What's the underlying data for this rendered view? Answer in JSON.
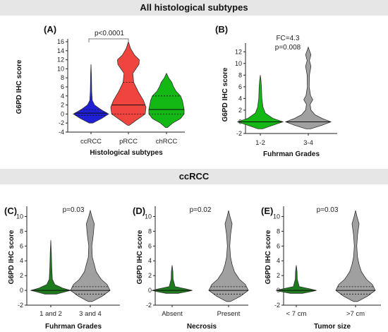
{
  "sections": {
    "top_title": "All histological subtypes",
    "bottom_title": "ccRCC"
  },
  "colors": {
    "blue": "#1f1fd6",
    "red": "#f0443f",
    "green": "#14b814",
    "dark_green": "#1d7a1d",
    "gray": "#a0a0a0",
    "annotation_bracket": "#777777"
  },
  "chart_data": [
    {
      "panel": "(A)",
      "type": "violin",
      "xlabel": "Histological subtypes",
      "ylabel": "G6PD IHC score",
      "ylim": [
        -4,
        16
      ],
      "yticks": [
        -4,
        -2,
        0,
        2,
        4,
        6,
        8,
        10,
        12,
        14,
        16
      ],
      "annotation": "p<0.0001",
      "categories": [
        "ccRCC",
        "pRCC",
        "chRCC"
      ],
      "series": [
        {
          "category": "ccRCC",
          "color": "blue",
          "min": -2,
          "max": 11,
          "median": 0.2,
          "q1": -0.3,
          "q3": 0.9,
          "profile": [
            [
              -2,
              0.1
            ],
            [
              -1,
              0.6
            ],
            [
              0,
              1.0
            ],
            [
              1,
              0.55
            ],
            [
              2,
              0.2
            ],
            [
              3,
              0.07
            ],
            [
              5,
              0.04
            ],
            [
              7,
              0.03
            ],
            [
              9,
              0.02
            ],
            [
              11,
              0
            ]
          ]
        },
        {
          "category": "pRCC",
          "color": "red",
          "min": -2.5,
          "max": 16,
          "median": 2,
          "q1": 0,
          "q3": 7,
          "profile": [
            [
              -2.5,
              0.05
            ],
            [
              -1.5,
              0.4
            ],
            [
              0,
              0.95
            ],
            [
              1.5,
              1.0
            ],
            [
              3,
              0.85
            ],
            [
              5,
              0.55
            ],
            [
              7,
              0.3
            ],
            [
              9,
              0.25
            ],
            [
              11,
              0.6
            ],
            [
              12,
              0.62
            ],
            [
              13,
              0.35
            ],
            [
              14.5,
              0.12
            ],
            [
              16,
              0
            ]
          ]
        },
        {
          "category": "chRCC",
          "color": "green",
          "min": -3,
          "max": 9,
          "median": 1,
          "q1": 0,
          "q3": 4,
          "profile": [
            [
              -3,
              0.05
            ],
            [
              -2,
              0.35
            ],
            [
              -1,
              0.8
            ],
            [
              0,
              1.0
            ],
            [
              1,
              1.0
            ],
            [
              2,
              0.95
            ],
            [
              3,
              0.9
            ],
            [
              4,
              0.8
            ],
            [
              5,
              0.55
            ],
            [
              6,
              0.4
            ],
            [
              7,
              0.3
            ],
            [
              8,
              0.12
            ],
            [
              9,
              0
            ]
          ]
        }
      ]
    },
    {
      "panel": "(B)",
      "type": "violin",
      "xlabel": "Fuhrman Grades",
      "ylabel": "G6PD IHC score",
      "ylim": [
        -2,
        13
      ],
      "yticks": [
        -2,
        0,
        2,
        4,
        6,
        8,
        10,
        12
      ],
      "annotation": "FC=4.3",
      "annotation2": "p=0.008",
      "categories": [
        "1-2",
        "3-4"
      ],
      "series": [
        {
          "category": "1-2",
          "color": "green",
          "min": -1.2,
          "max": 8,
          "median": 0,
          "q1": -0.3,
          "q3": 0.3,
          "profile": [
            [
              -1.2,
              0.1
            ],
            [
              -0.6,
              0.55
            ],
            [
              0,
              1.0
            ],
            [
              0.6,
              0.55
            ],
            [
              1.5,
              0.22
            ],
            [
              2.5,
              0.12
            ],
            [
              4,
              0.07
            ],
            [
              6,
              0.05
            ],
            [
              7,
              0.03
            ],
            [
              8,
              0
            ]
          ]
        },
        {
          "category": "3-4",
          "color": "gray",
          "min": -1.2,
          "max": 12.8,
          "median": 0,
          "q1": -0.3,
          "q3": 0.3,
          "profile": [
            [
              -1.2,
              0.1
            ],
            [
              -0.6,
              0.6
            ],
            [
              0,
              1.0
            ],
            [
              0.6,
              0.6
            ],
            [
              1.2,
              0.3
            ],
            [
              2,
              0.12
            ],
            [
              3,
              0.08
            ],
            [
              3.8,
              0.2
            ],
            [
              4.5,
              0.1
            ],
            [
              6,
              0.04
            ],
            [
              8,
              0.05
            ],
            [
              9.5,
              0.12
            ],
            [
              10.5,
              0.05
            ],
            [
              11.5,
              0.12
            ],
            [
              12.2,
              0.05
            ],
            [
              12.8,
              0
            ]
          ]
        }
      ]
    },
    {
      "panel": "(C)",
      "type": "violin",
      "xlabel": "Fuhrman Grades",
      "ylabel": "G6PD IHC score",
      "ylim": [
        -2,
        11
      ],
      "yticks": [
        -2,
        0,
        2,
        4,
        6,
        8,
        10
      ],
      "annotation": "p=0.03",
      "categories": [
        "1 and 2",
        "3 and 4"
      ],
      "series": [
        {
          "category": "1 and 2",
          "color": "dark_green",
          "min": -0.5,
          "max": 6.8,
          "median": 0,
          "q1": -0.2,
          "q3": 0.2,
          "profile": [
            [
              -0.5,
              0.3
            ],
            [
              -0.2,
              0.7
            ],
            [
              0,
              1.0
            ],
            [
              0.3,
              0.6
            ],
            [
              0.8,
              0.2
            ],
            [
              1.5,
              0.08
            ],
            [
              3,
              0.05
            ],
            [
              5,
              0.03
            ],
            [
              6.8,
              0
            ]
          ]
        },
        {
          "category": "3 and 4",
          "color": "gray",
          "min": -1.5,
          "max": 10.8,
          "median": 0,
          "q1": -0.5,
          "q3": 0.5,
          "profile": [
            [
              -1.5,
              0.1
            ],
            [
              -0.8,
              0.6
            ],
            [
              0,
              1.0
            ],
            [
              0.8,
              0.85
            ],
            [
              1.5,
              0.55
            ],
            [
              2.5,
              0.3
            ],
            [
              3.5,
              0.2
            ],
            [
              4.5,
              0.1
            ],
            [
              6,
              0.08
            ],
            [
              7.5,
              0.15
            ],
            [
              9,
              0.2
            ],
            [
              10,
              0.08
            ],
            [
              10.8,
              0
            ]
          ]
        }
      ]
    },
    {
      "panel": "(D)",
      "type": "violin",
      "xlabel": "Necrosis",
      "ylabel": "G6PD IHC score",
      "ylim": [
        -2,
        11
      ],
      "yticks": [
        -2,
        0,
        2,
        4,
        6,
        8,
        10
      ],
      "annotation": "p=0.02",
      "categories": [
        "Absent",
        "Present"
      ],
      "series": [
        {
          "category": "Absent",
          "color": "dark_green",
          "min": -0.4,
          "max": 3.4,
          "median": 0,
          "q1": -0.15,
          "q3": 0.15,
          "profile": [
            [
              -0.4,
              0.3
            ],
            [
              -0.15,
              0.8
            ],
            [
              0,
              1.0
            ],
            [
              0.2,
              0.7
            ],
            [
              0.5,
              0.15
            ],
            [
              1.5,
              0.05
            ],
            [
              2.5,
              0.04
            ],
            [
              3.4,
              0
            ]
          ]
        },
        {
          "category": "Present",
          "color": "gray",
          "min": -1.5,
          "max": 10.8,
          "median": 0,
          "q1": -0.5,
          "q3": 0.5,
          "profile": [
            [
              -1.5,
              0.1
            ],
            [
              -0.8,
              0.6
            ],
            [
              0,
              1.0
            ],
            [
              0.8,
              0.85
            ],
            [
              1.5,
              0.55
            ],
            [
              2.5,
              0.3
            ],
            [
              3.5,
              0.18
            ],
            [
              4.5,
              0.1
            ],
            [
              6,
              0.06
            ],
            [
              7.5,
              0.1
            ],
            [
              9,
              0.18
            ],
            [
              10,
              0.07
            ],
            [
              10.8,
              0
            ]
          ]
        }
      ]
    },
    {
      "panel": "(E)",
      "type": "violin",
      "xlabel": "Tumor size",
      "ylabel": "G6PD IHC score",
      "ylim": [
        -2,
        11
      ],
      "yticks": [
        -2,
        0,
        2,
        4,
        6,
        8,
        10
      ],
      "annotation": "p=0.03",
      "categories": [
        "< 7 cm",
        ">7 cm"
      ],
      "series": [
        {
          "category": "< 7 cm",
          "color": "dark_green",
          "min": -0.4,
          "max": 3.4,
          "median": 0,
          "q1": -0.15,
          "q3": 0.15,
          "profile": [
            [
              -0.4,
              0.3
            ],
            [
              -0.15,
              0.8
            ],
            [
              0,
              1.0
            ],
            [
              0.2,
              0.7
            ],
            [
              0.5,
              0.15
            ],
            [
              1.5,
              0.05
            ],
            [
              2.5,
              0.04
            ],
            [
              3.4,
              0
            ]
          ]
        },
        {
          "category": ">7 cm",
          "color": "gray",
          "min": -1.5,
          "max": 10.8,
          "median": 0,
          "q1": -0.5,
          "q3": 0.5,
          "profile": [
            [
              -1.5,
              0.1
            ],
            [
              -0.8,
              0.6
            ],
            [
              0,
              1.0
            ],
            [
              0.8,
              0.85
            ],
            [
              1.5,
              0.55
            ],
            [
              2.5,
              0.3
            ],
            [
              3.5,
              0.18
            ],
            [
              4.5,
              0.1
            ],
            [
              6,
              0.06
            ],
            [
              7.5,
              0.1
            ],
            [
              9,
              0.18
            ],
            [
              10,
              0.07
            ],
            [
              10.8,
              0
            ]
          ]
        }
      ]
    }
  ]
}
